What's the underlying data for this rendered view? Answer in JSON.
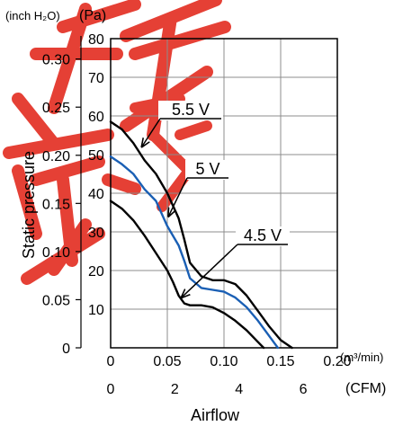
{
  "chart_data": {
    "type": "line",
    "title": "",
    "xlabel": "Airflow",
    "ylabel": "Static pressure",
    "x_unit_primary": "(m³/min)",
    "x_unit_secondary": "(CFM)",
    "y_unit_left": "(inch H₂O)",
    "y_unit_right": "(Pa)",
    "xlim": [
      0,
      0.2
    ],
    "ylim": [
      0,
      80
    ],
    "x_ticks_m3": [
      "0",
      "0.05",
      "0.10",
      "0.15",
      "0.20"
    ],
    "x_ticks_cfm": [
      "0",
      "2",
      "4",
      "6"
    ],
    "y_ticks_pa": [
      "10",
      "20",
      "30",
      "40",
      "50",
      "60",
      "70",
      "80"
    ],
    "y_ticks_inch": [
      "0",
      "0.05",
      "0.10",
      "0.15",
      "0.20",
      "0.25",
      "0.30"
    ],
    "grid": true,
    "series": [
      {
        "name": "5.5 V",
        "color": "#000000",
        "x": [
          0,
          0.01,
          0.02,
          0.03,
          0.04,
          0.05,
          0.06,
          0.065,
          0.07,
          0.08,
          0.09,
          0.1,
          0.11,
          0.12,
          0.13,
          0.14,
          0.15,
          0.16
        ],
        "y": [
          58.5,
          56.5,
          53,
          48.5,
          45,
          40,
          33.5,
          28,
          22,
          18.5,
          17.5,
          17.5,
          16.5,
          13.5,
          9.5,
          5.5,
          2,
          0
        ]
      },
      {
        "name": "5 V",
        "color": "#1a5fb4",
        "x": [
          0,
          0.01,
          0.02,
          0.03,
          0.04,
          0.05,
          0.06,
          0.065,
          0.07,
          0.08,
          0.09,
          0.1,
          0.11,
          0.12,
          0.13,
          0.14,
          0.1475
        ],
        "y": [
          49.5,
          47.5,
          45,
          41,
          38,
          31.5,
          26.5,
          22.5,
          18,
          15.5,
          15,
          14.5,
          13,
          10.5,
          7,
          3,
          0
        ]
      },
      {
        "name": "4.5 V",
        "color": "#000000",
        "x": [
          0,
          0.01,
          0.02,
          0.03,
          0.04,
          0.05,
          0.055,
          0.06,
          0.065,
          0.07,
          0.08,
          0.09,
          0.1,
          0.11,
          0.12,
          0.13,
          0.135
        ],
        "y": [
          38,
          36,
          33,
          29,
          24.5,
          20,
          17,
          13.5,
          11.5,
          11,
          11,
          10.5,
          9,
          7,
          4.5,
          1.5,
          0
        ]
      }
    ],
    "annotations": [
      {
        "label": "5.5 V",
        "target_x": 0.0275,
        "target_y": 52
      },
      {
        "label": "5 V",
        "target_x": 0.051,
        "target_y": 34
      },
      {
        "label": "4.5 V",
        "target_x": 0.0625,
        "target_y": 13
      }
    ]
  }
}
